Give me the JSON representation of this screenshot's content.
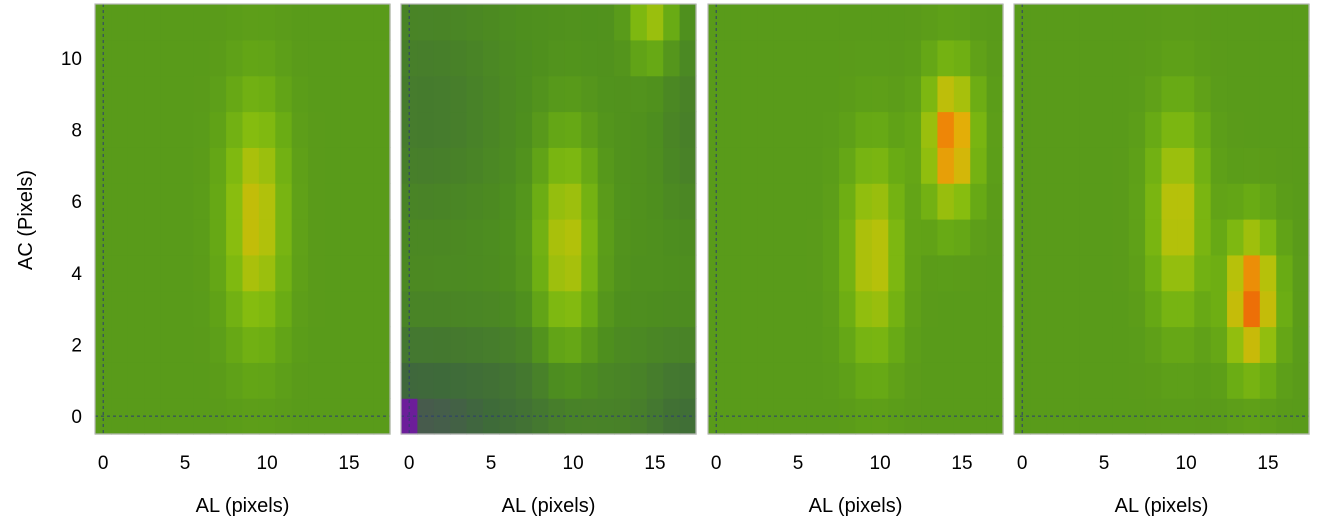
{
  "chart_data": {
    "type": "heatmap",
    "xlabel": "AL (pixels)",
    "ylabel": "AC (Pixels)",
    "x_ticks": [
      0,
      5,
      10,
      15
    ],
    "y_ticks": [
      0,
      2,
      4,
      6,
      8,
      10
    ],
    "xlim": [
      -0.5,
      17.5
    ],
    "ylim": [
      -0.5,
      11.5
    ],
    "grid": false,
    "reference_lines": {
      "x": 0,
      "y": 0,
      "style": "dashed"
    },
    "colormap": [
      "#6c1e9a",
      "#3e6a3a",
      "#4e8f1e",
      "#6aac14",
      "#87bd0f",
      "#b6c10a",
      "#e2b108",
      "#f07f07",
      "#e23a05"
    ],
    "panels": [
      {
        "name": "",
        "peaks": [
          {
            "x": 9.3,
            "y": 5.5,
            "sx": 1.2,
            "sy": 2.2,
            "amp": 0.38
          }
        ],
        "background": 0.3
      },
      {
        "name": "",
        "peaks": [
          {
            "x": 9.6,
            "y": 4.8,
            "sx": 1.2,
            "sy": 2.0,
            "amp": 0.38
          },
          {
            "x": 14.8,
            "y": 11.3,
            "sx": 0.9,
            "sy": 0.9,
            "amp": 0.32
          }
        ],
        "background": 0.26,
        "dark_regions": [
          {
            "x": 0,
            "y": 0,
            "sx": 8.0,
            "sy": 1.8,
            "amp": 0.16
          },
          {
            "x": 17,
            "y": 0,
            "sx": 2.0,
            "sy": 1.5,
            "amp": 0.1
          },
          {
            "x": 1,
            "y": 8.5,
            "sx": 3.5,
            "sy": 2.5,
            "amp": 0.08
          },
          {
            "x": 17,
            "y": 8,
            "sx": 1.2,
            "sy": 2.0,
            "amp": 0.06
          }
        ],
        "min_cell": {
          "x": 0,
          "y": 0,
          "value": 0.0
        }
      },
      {
        "name": "",
        "peaks": [
          {
            "x": 9.6,
            "y": 4.5,
            "sx": 1.1,
            "sy": 1.9,
            "amp": 0.36
          },
          {
            "x": 14.3,
            "y": 7.7,
            "sx": 1.0,
            "sy": 1.3,
            "amp": 0.6
          }
        ],
        "background": 0.3
      },
      {
        "name": "",
        "peaks": [
          {
            "x": 9.5,
            "y": 5.6,
            "sx": 1.1,
            "sy": 1.9,
            "amp": 0.37
          },
          {
            "x": 14.0,
            "y": 3.3,
            "sx": 1.0,
            "sy": 1.3,
            "amp": 0.62
          }
        ],
        "background": 0.3
      }
    ]
  }
}
